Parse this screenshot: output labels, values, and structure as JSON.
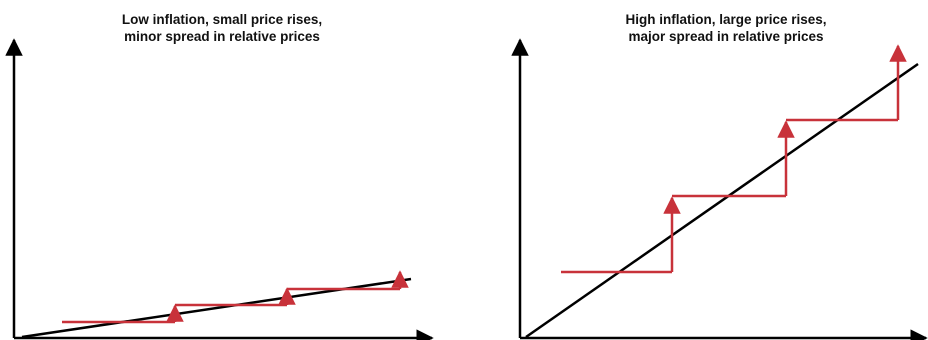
{
  "colors": {
    "axis": "#000000",
    "trend_line": "#000000",
    "price_steps": "#c8323a"
  },
  "panels": [
    {
      "title_line1": "Low inflation, small price rises,",
      "title_line2": "minor spread in relative prices"
    },
    {
      "title_line1": "High inflation, large price rises,",
      "title_line2": "major spread in relative prices"
    }
  ]
}
